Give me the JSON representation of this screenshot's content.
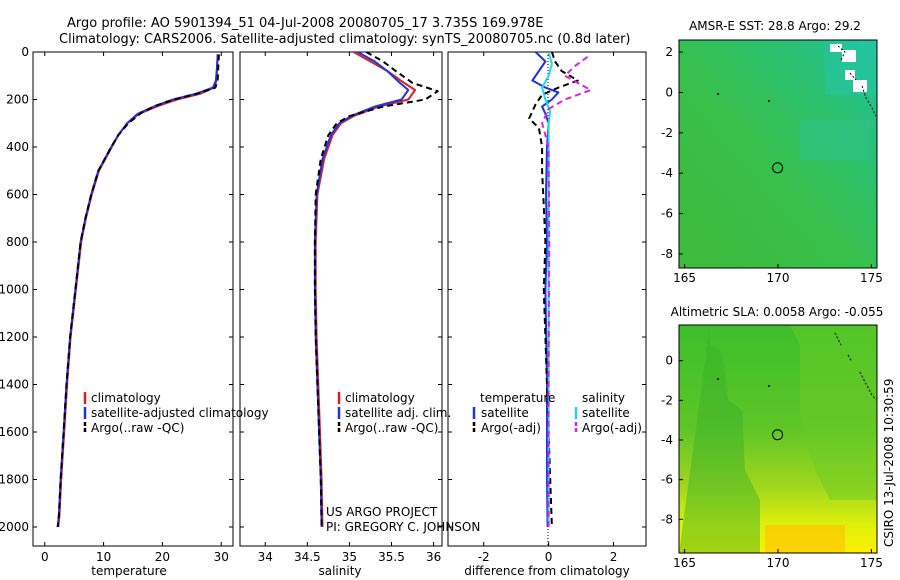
{
  "header": {
    "line1": "Argo profile: AO 5901394_51 04-Jul-2008 20080705_17 3.735S 169.978E",
    "line2": "Climatology: CARS2006. Satellite-adjusted climatology: synTS_20080705.nc (0.8d later)"
  },
  "credits": {
    "project": "US ARGO PROJECT",
    "pi": "PI: GREGORY C. JOHNSON",
    "side": "CSIRO 13-Jul-2008 10:30:59"
  },
  "colors": {
    "climatology": "#e02020",
    "satellite": "#1a35e0",
    "argo": "#000000",
    "cyan": "#22d8e8",
    "magenta": "#e020e0"
  },
  "chart_data": [
    {
      "type": "line",
      "name": "temperature",
      "xlabel": "temperature",
      "ylabel": "",
      "xlim": [
        -2,
        32
      ],
      "ylim": [
        2080,
        0
      ],
      "x_ticks": [
        0,
        10,
        20,
        30
      ],
      "y_ticks": [
        0,
        200,
        400,
        600,
        800,
        1000,
        1200,
        1400,
        1600,
        1800,
        2000
      ],
      "legend": [
        "climatology",
        "satellite-adjusted climatology",
        "Argo(..raw -QC)"
      ],
      "series": [
        {
          "name": "climatology",
          "color_key": "climatology",
          "dash": "",
          "x": [
            29.4,
            29.3,
            29.2,
            28.8,
            26.5,
            22.5,
            19.5,
            16.0,
            14.0,
            12.5,
            11.4,
            10.3,
            9.2,
            8.0,
            7.0,
            6.2,
            5.3,
            4.4,
            3.8,
            3.3,
            2.8,
            2.5,
            2.3
          ],
          "y": [
            10,
            60,
            120,
            150,
            175,
            200,
            225,
            260,
            300,
            350,
            400,
            450,
            500,
            600,
            700,
            800,
            1000,
            1200,
            1400,
            1600,
            1800,
            1950,
            2000
          ]
        },
        {
          "name": "satellite-adjusted climatology",
          "color_key": "satellite",
          "dash": "",
          "x": [
            29.4,
            29.3,
            29.1,
            28.6,
            25.8,
            21.8,
            19.0,
            15.8,
            14.0,
            12.5,
            11.3,
            10.2,
            9.1,
            7.9,
            6.9,
            6.1,
            5.2,
            4.3,
            3.7,
            3.2,
            2.7,
            2.4,
            2.2
          ],
          "y": [
            10,
            60,
            120,
            150,
            175,
            200,
            225,
            260,
            300,
            350,
            400,
            450,
            500,
            600,
            700,
            800,
            1000,
            1200,
            1400,
            1600,
            1800,
            1950,
            2000
          ]
        },
        {
          "name": "Argo(..raw -QC)",
          "color_key": "argo",
          "dash": "6,4",
          "x": [
            29.6,
            29.5,
            29.4,
            29.0,
            26.0,
            22.0,
            19.0,
            16.5,
            14.2,
            12.5,
            11.3,
            10.2,
            9.1,
            7.9,
            6.9,
            6.1,
            5.2,
            4.3,
            3.7,
            3.2,
            2.7,
            2.4,
            2.2
          ],
          "y": [
            10,
            60,
            120,
            150,
            175,
            200,
            225,
            255,
            300,
            350,
            400,
            450,
            500,
            600,
            700,
            800,
            1000,
            1200,
            1400,
            1600,
            1800,
            1950,
            2000
          ]
        }
      ]
    },
    {
      "type": "line",
      "name": "salinity",
      "xlabel": "salinity",
      "xlim": [
        33.7,
        36.1
      ],
      "ylim": [
        2080,
        0
      ],
      "x_ticks": [
        34,
        34.5,
        35,
        35.5,
        36
      ],
      "legend": [
        "climatology",
        "satellite adj. clim.",
        "Argo(..raw -QC)"
      ],
      "series": [
        {
          "name": "climatology",
          "color_key": "climatology",
          "dash": "",
          "x": [
            35.05,
            35.25,
            35.45,
            35.65,
            35.78,
            35.7,
            35.35,
            35.05,
            34.9,
            34.8,
            34.7,
            34.62,
            34.6,
            34.6,
            34.61,
            34.63,
            34.65,
            34.67,
            34.68
          ],
          "y": [
            0,
            40,
            80,
            130,
            160,
            200,
            230,
            270,
            300,
            350,
            450,
            600,
            800,
            1000,
            1200,
            1400,
            1600,
            1800,
            2000
          ]
        },
        {
          "name": "satellite adj. clim.",
          "color_key": "satellite",
          "dash": "",
          "x": [
            35.1,
            35.3,
            35.45,
            35.6,
            35.7,
            35.62,
            35.3,
            35.02,
            34.88,
            34.78,
            34.68,
            34.61,
            34.59,
            34.59,
            34.6,
            34.62,
            34.64,
            34.66,
            34.67
          ],
          "y": [
            0,
            40,
            80,
            130,
            160,
            200,
            230,
            270,
            300,
            350,
            450,
            600,
            800,
            1000,
            1200,
            1400,
            1600,
            1800,
            2000
          ]
        },
        {
          "name": "Argo(..raw -QC)",
          "color_key": "argo",
          "dash": "6,4",
          "x": [
            35.2,
            35.4,
            35.55,
            35.75,
            36.05,
            35.9,
            35.4,
            35.0,
            34.85,
            34.75,
            34.66,
            34.6,
            34.59,
            34.59,
            34.6,
            34.62,
            34.64,
            34.66,
            34.67
          ],
          "y": [
            0,
            40,
            80,
            130,
            165,
            200,
            230,
            270,
            300,
            350,
            450,
            600,
            800,
            1000,
            1200,
            1400,
            1600,
            1800,
            2000
          ]
        }
      ]
    },
    {
      "type": "line",
      "name": "difference from climatology",
      "xlabel": "difference from climatology",
      "xlim": [
        -3.1,
        3.0
      ],
      "ylim": [
        2080,
        0
      ],
      "x_ticks": [
        -2,
        0,
        2
      ],
      "legend_headers": [
        "temperature",
        "salinity"
      ],
      "legend": [
        "satellite",
        "Argo(-adj)",
        "satellite",
        "Argo(-adj)"
      ],
      "series": [
        {
          "name": "temperature satellite",
          "color_key": "satellite",
          "dash": "",
          "x": [
            -0.4,
            -0.1,
            -0.3,
            -0.5,
            -0.1,
            0.3,
            0.1,
            -0.2,
            -0.1,
            0.0,
            -0.05,
            -0.08,
            -0.05,
            -0.1,
            -0.05,
            -0.05,
            -0.03
          ],
          "y": [
            0,
            40,
            80,
            120,
            150,
            170,
            200,
            230,
            260,
            300,
            400,
            600,
            800,
            1000,
            1400,
            1800,
            2000
          ]
        },
        {
          "name": "temperature Argo(-adj)",
          "color_key": "argo",
          "dash": "6,4",
          "x": [
            0.1,
            0.2,
            0.4,
            0.9,
            0.3,
            -0.2,
            -0.4,
            -0.6,
            -0.3,
            -0.2,
            -0.2,
            -0.15,
            -0.1,
            -0.15,
            -0.05,
            0.05,
            0.1
          ],
          "y": [
            0,
            40,
            80,
            120,
            150,
            180,
            220,
            280,
            320,
            400,
            500,
            650,
            800,
            1000,
            1400,
            1800,
            2000
          ]
        },
        {
          "name": "salinity satellite",
          "color_key": "cyan",
          "dash": "",
          "x": [
            0.0,
            0.1,
            0.0,
            -0.2,
            -0.1,
            0.05,
            0.0,
            0.0,
            0.0,
            0.0,
            0.0,
            0.0
          ],
          "y": [
            0,
            50,
            100,
            150,
            200,
            250,
            300,
            400,
            800,
            1200,
            1600,
            2000
          ]
        },
        {
          "name": "salinity Argo(-adj)",
          "color_key": "magenta",
          "dash": "6,4",
          "x": [
            1.2,
            0.8,
            0.5,
            1.3,
            0.5,
            0.0,
            -0.2,
            0.0,
            0.02,
            0.0,
            0.0
          ],
          "y": [
            20,
            60,
            100,
            160,
            200,
            240,
            300,
            400,
            800,
            1400,
            2000
          ]
        }
      ]
    },
    {
      "type": "heatmap",
      "name": "sst map",
      "title": "AMSR-E SST: 28.8 Argo: 29.2",
      "xlim": [
        164.7,
        175.3
      ],
      "ylim": [
        -8.7,
        2.6
      ],
      "x_ticks": [
        165,
        170,
        175
      ],
      "y_ticks": [
        2,
        0,
        -2,
        -4,
        -6,
        -8
      ],
      "profile_location": {
        "lon": 169.978,
        "lat": -3.735
      }
    },
    {
      "type": "heatmap",
      "name": "sla map",
      "title": "Altimetric SLA: 0.0058 Argo: -0.055",
      "xlim": [
        164.7,
        175.3
      ],
      "ylim": [
        -9.7,
        1.8
      ],
      "x_ticks": [
        165,
        170,
        175
      ],
      "y_ticks": [
        0,
        -2,
        -4,
        -6,
        -8
      ],
      "profile_location": {
        "lon": 169.978,
        "lat": -3.735
      }
    }
  ]
}
